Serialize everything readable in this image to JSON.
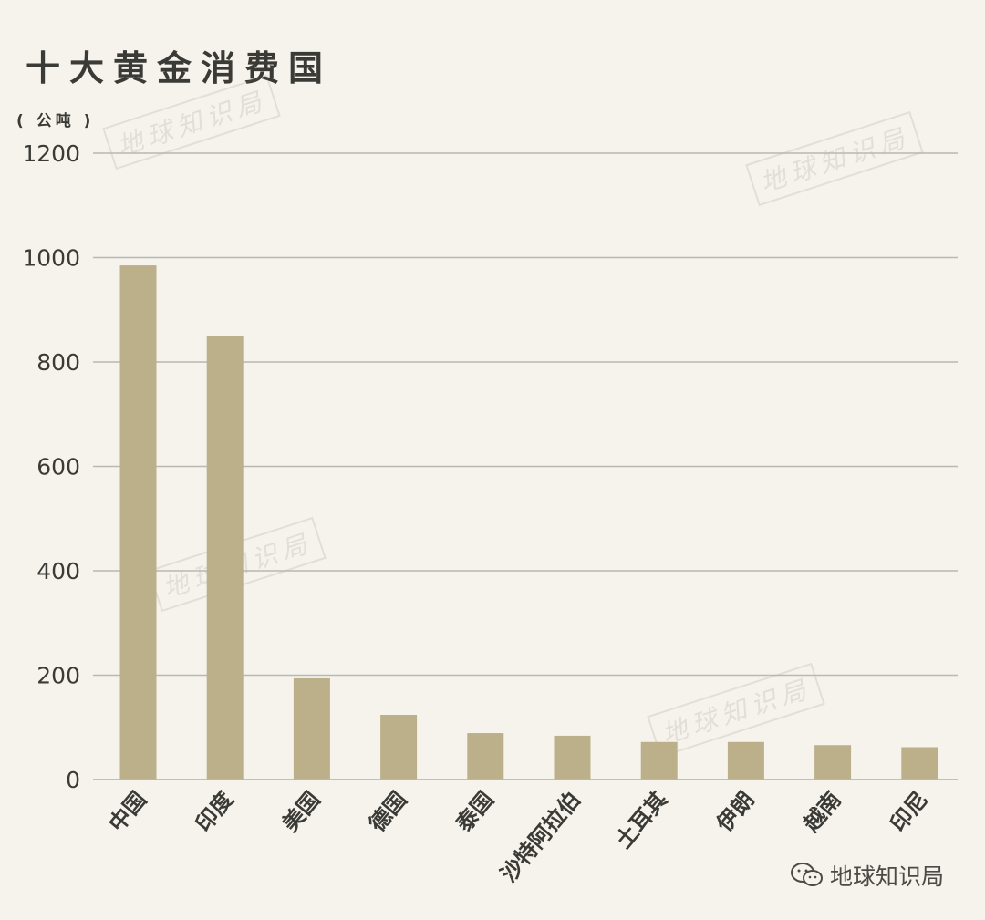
{
  "title": "十大黄金消费国",
  "unit": "( 公吨 )",
  "watermark_text": "地球知识局",
  "footer_text": "地球知识局",
  "colors": {
    "bar": "#bcb08a",
    "grid": "#b8b8b4",
    "text": "#3a3a36",
    "background": "#f6f3ec"
  },
  "chart_data": {
    "type": "bar",
    "title": "十大黄金消费国",
    "xlabel": "",
    "ylabel": "( 公吨 )",
    "categories": [
      "中国",
      "印度",
      "美国",
      "德国",
      "泰国",
      "沙特阿拉伯",
      "土耳其",
      "伊朗",
      "越南",
      "印尼"
    ],
    "values": [
      985,
      849,
      194,
      124,
      89,
      84,
      72,
      72,
      66,
      62
    ],
    "ylim": [
      0,
      1200
    ],
    "yticks": [
      0,
      200,
      400,
      600,
      800,
      1000,
      1200
    ],
    "grid": true,
    "legend": "none"
  }
}
